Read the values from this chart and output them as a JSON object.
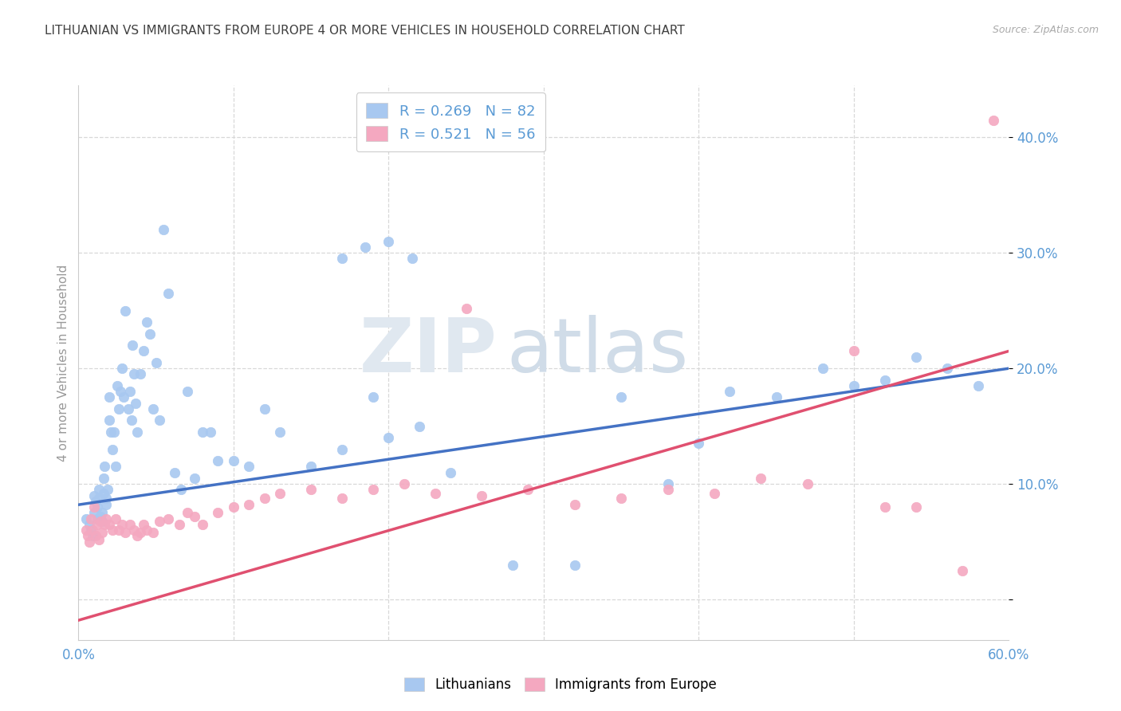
{
  "title": "LITHUANIAN VS IMMIGRANTS FROM EUROPE 4 OR MORE VEHICLES IN HOUSEHOLD CORRELATION CHART",
  "source": "Source: ZipAtlas.com",
  "ylabel": "4 or more Vehicles in Household",
  "xmin": 0.0,
  "xmax": 0.6,
  "ymin": -0.035,
  "ymax": 0.445,
  "yticks": [
    0.0,
    0.1,
    0.2,
    0.3,
    0.4
  ],
  "ytick_labels": [
    "",
    "10.0%",
    "20.0%",
    "30.0%",
    "40.0%"
  ],
  "background_color": "#ffffff",
  "watermark_zip": "ZIP",
  "watermark_atlas": "atlas",
  "grid_color": "#d8d8d8",
  "title_color": "#404040",
  "axis_label_color": "#5b9bd5",
  "R1": 0.269,
  "N1": 82,
  "R2": 0.521,
  "N2": 56,
  "line1_x0": 0.0,
  "line1_y0": 0.082,
  "line1_x1": 0.6,
  "line1_y1": 0.2,
  "line2_x0": 0.0,
  "line2_y0": -0.018,
  "line2_x1": 0.6,
  "line2_y1": 0.215,
  "series1_color": "#a8c8f0",
  "series2_color": "#f4a8c0",
  "series1_line_color": "#4472c4",
  "series2_line_color": "#e05070",
  "scatter1_x": [
    0.005,
    0.007,
    0.008,
    0.009,
    0.01,
    0.01,
    0.011,
    0.012,
    0.012,
    0.013,
    0.013,
    0.014,
    0.015,
    0.015,
    0.016,
    0.016,
    0.017,
    0.018,
    0.018,
    0.019,
    0.02,
    0.02,
    0.021,
    0.022,
    0.023,
    0.024,
    0.025,
    0.026,
    0.027,
    0.028,
    0.029,
    0.03,
    0.032,
    0.033,
    0.034,
    0.035,
    0.036,
    0.037,
    0.038,
    0.04,
    0.042,
    0.044,
    0.046,
    0.048,
    0.05,
    0.052,
    0.055,
    0.058,
    0.062,
    0.066,
    0.07,
    0.075,
    0.08,
    0.085,
    0.09,
    0.1,
    0.11,
    0.12,
    0.13,
    0.15,
    0.17,
    0.19,
    0.2,
    0.22,
    0.24,
    0.28,
    0.32,
    0.35,
    0.38,
    0.4,
    0.42,
    0.45,
    0.48,
    0.5,
    0.52,
    0.54,
    0.56,
    0.58,
    0.17,
    0.185,
    0.2,
    0.215
  ],
  "scatter1_y": [
    0.07,
    0.065,
    0.06,
    0.055,
    0.09,
    0.075,
    0.085,
    0.07,
    0.08,
    0.095,
    0.088,
    0.072,
    0.068,
    0.075,
    0.105,
    0.092,
    0.115,
    0.082,
    0.088,
    0.095,
    0.155,
    0.175,
    0.145,
    0.13,
    0.145,
    0.115,
    0.185,
    0.165,
    0.18,
    0.2,
    0.175,
    0.25,
    0.165,
    0.18,
    0.155,
    0.22,
    0.195,
    0.17,
    0.145,
    0.195,
    0.215,
    0.24,
    0.23,
    0.165,
    0.205,
    0.155,
    0.32,
    0.265,
    0.11,
    0.095,
    0.18,
    0.105,
    0.145,
    0.145,
    0.12,
    0.12,
    0.115,
    0.165,
    0.145,
    0.115,
    0.13,
    0.175,
    0.14,
    0.15,
    0.11,
    0.03,
    0.03,
    0.175,
    0.1,
    0.135,
    0.18,
    0.175,
    0.2,
    0.185,
    0.19,
    0.21,
    0.2,
    0.185,
    0.295,
    0.305,
    0.31,
    0.295
  ],
  "scatter2_x": [
    0.005,
    0.006,
    0.007,
    0.008,
    0.009,
    0.01,
    0.011,
    0.012,
    0.013,
    0.014,
    0.015,
    0.017,
    0.018,
    0.02,
    0.022,
    0.024,
    0.026,
    0.028,
    0.03,
    0.033,
    0.036,
    0.038,
    0.04,
    0.042,
    0.044,
    0.048,
    0.052,
    0.058,
    0.065,
    0.07,
    0.075,
    0.08,
    0.09,
    0.1,
    0.11,
    0.12,
    0.13,
    0.15,
    0.17,
    0.19,
    0.21,
    0.23,
    0.26,
    0.29,
    0.32,
    0.35,
    0.38,
    0.41,
    0.44,
    0.47,
    0.5,
    0.52,
    0.54,
    0.57,
    0.59,
    0.25
  ],
  "scatter2_y": [
    0.06,
    0.055,
    0.05,
    0.07,
    0.06,
    0.08,
    0.055,
    0.065,
    0.052,
    0.068,
    0.058,
    0.065,
    0.07,
    0.065,
    0.06,
    0.07,
    0.06,
    0.065,
    0.058,
    0.065,
    0.06,
    0.055,
    0.058,
    0.065,
    0.06,
    0.058,
    0.068,
    0.07,
    0.065,
    0.075,
    0.072,
    0.065,
    0.075,
    0.08,
    0.082,
    0.088,
    0.092,
    0.095,
    0.088,
    0.095,
    0.1,
    0.092,
    0.09,
    0.095,
    0.082,
    0.088,
    0.095,
    0.092,
    0.105,
    0.1,
    0.215,
    0.08,
    0.08,
    0.025,
    0.415,
    0.252
  ]
}
